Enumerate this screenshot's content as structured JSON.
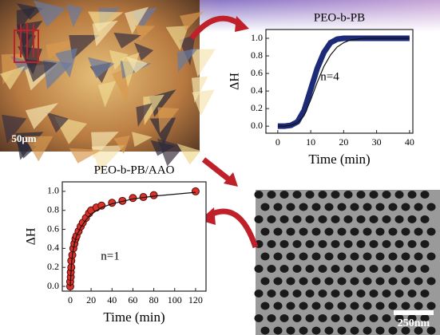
{
  "chart_data": [
    {
      "type": "line",
      "title": "PEO-b-PB",
      "x_label": "Time (min)",
      "y_label": "ΔH",
      "annotation": "n=4",
      "xlim": [
        -3.6,
        41
      ],
      "ylim": [
        -0.08,
        1.1
      ],
      "xticks": [
        0,
        10,
        20,
        30,
        40
      ],
      "yticks": [
        {
          "value": 0,
          "label": "0.0"
        },
        {
          "value": 0.2,
          "label": "0.2"
        },
        {
          "value": 0.4,
          "label": "0.4"
        },
        {
          "value": 0.6,
          "label": "0.6"
        },
        {
          "value": 0.8,
          "label": "0.8"
        },
        {
          "value": 1,
          "label": "1.0"
        }
      ],
      "grid": false,
      "series": [
        {
          "color": "#1c2a78",
          "width": 7,
          "x": [
            0,
            2,
            4,
            6,
            8,
            10,
            12,
            14,
            16,
            18,
            20,
            22,
            24,
            26,
            28,
            30,
            32,
            34,
            36,
            38,
            40
          ],
          "values": [
            0,
            0,
            0.01,
            0.05,
            0.18,
            0.42,
            0.66,
            0.84,
            0.95,
            0.99,
            1,
            1,
            1,
            1,
            1,
            1,
            1,
            1,
            1,
            1,
            1
          ]
        },
        {
          "color": "#111111",
          "width": 1.2,
          "x": [
            0,
            2,
            4,
            6,
            8,
            10,
            12,
            14,
            16,
            18,
            20,
            22,
            24,
            26,
            28,
            30,
            32,
            34,
            36,
            38,
            40
          ],
          "values": [
            0,
            0,
            0.01,
            0.04,
            0.12,
            0.3,
            0.5,
            0.68,
            0.81,
            0.9,
            0.95,
            0.98,
            0.99,
            1,
            1,
            1,
            1,
            1,
            1,
            1,
            1
          ]
        }
      ]
    },
    {
      "type": "scatter",
      "title": "PEO-b-PB/AAO",
      "x_label": "Time (min)",
      "y_label": "ΔH",
      "annotation": "n=1",
      "xlim": [
        -7.6,
        130
      ],
      "ylim": [
        -0.05,
        1.1
      ],
      "xticks": [
        0,
        20,
        40,
        60,
        80,
        100,
        120
      ],
      "yticks": [
        {
          "value": 0,
          "label": "0.0"
        },
        {
          "value": 0.2,
          "label": "0.2"
        },
        {
          "value": 0.4,
          "label": "0.4"
        },
        {
          "value": 0.6,
          "label": "0.6"
        },
        {
          "value": 0.8,
          "label": "0.8"
        },
        {
          "value": 1,
          "label": "1.0"
        }
      ],
      "grid": false,
      "series": [
        {
          "color": "#d8322a",
          "marker": "circle",
          "x": [
            0,
            0,
            0.5,
            0.5,
            1,
            1,
            2,
            3,
            4,
            5,
            6,
            8,
            10,
            12,
            15,
            18,
            20,
            25,
            30,
            40,
            50,
            60,
            70,
            80,
            120
          ],
          "values": [
            0,
            0.05,
            0.1,
            0.15,
            0.2,
            0.27,
            0.33,
            0.4,
            0.45,
            0.5,
            0.53,
            0.58,
            0.63,
            0.67,
            0.72,
            0.77,
            0.8,
            0.83,
            0.85,
            0.88,
            0.9,
            0.93,
            0.94,
            0.96,
            1.0
          ]
        },
        {
          "color": "#111111",
          "marker": "line",
          "x": [
            0,
            1,
            2,
            4,
            6,
            10,
            15,
            20,
            30,
            40,
            60,
            80,
            100,
            120
          ],
          "values": [
            0,
            0.2,
            0.33,
            0.45,
            0.53,
            0.62,
            0.7,
            0.76,
            0.83,
            0.87,
            0.92,
            0.95,
            0.97,
            0.99
          ]
        }
      ]
    }
  ],
  "images": {
    "micrograph_scale": "50μm",
    "sem_scale": "250nm"
  }
}
